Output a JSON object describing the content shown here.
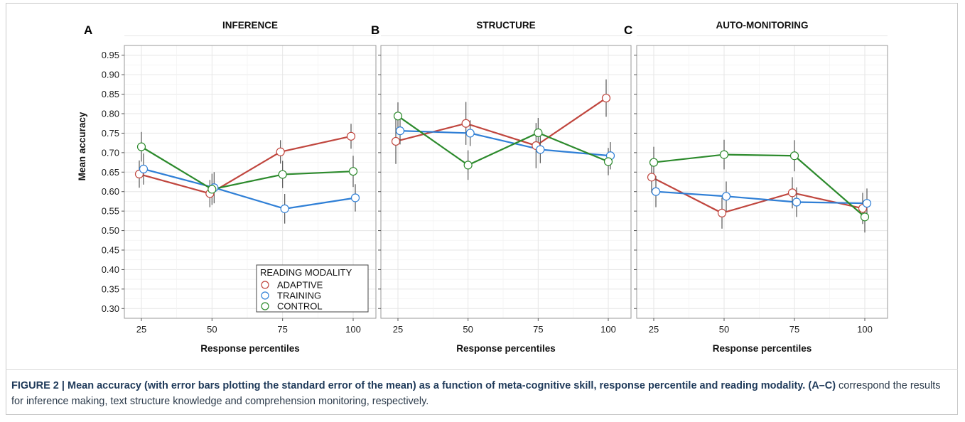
{
  "chart_data": [
    {
      "type": "line",
      "panel_letter": "A",
      "title": "INFERENCE",
      "xlabel": "Response percentiles",
      "ylabel": "Mean accuracy",
      "x_ticks": [
        "25",
        "50",
        "75",
        "100"
      ],
      "y_ticks": [
        "0.30",
        "0.35",
        "0.40",
        "0.45",
        "0.50",
        "0.55",
        "0.60",
        "0.65",
        "0.70",
        "0.75",
        "0.80",
        "0.85",
        "0.90",
        "0.95"
      ],
      "ylim": [
        0.275,
        0.975
      ],
      "grid": true,
      "series": [
        {
          "name": "ADAPTIVE",
          "x": [
            25,
            50,
            75,
            100
          ],
          "values": [
            0.645,
            0.595,
            0.702,
            0.742
          ],
          "se": [
            0.035,
            0.035,
            0.03,
            0.032
          ]
        },
        {
          "name": "TRAINING",
          "x": [
            25,
            50,
            75,
            100
          ],
          "values": [
            0.658,
            0.61,
            0.556,
            0.584
          ],
          "se": [
            0.04,
            0.04,
            0.038,
            0.035
          ]
        },
        {
          "name": "CONTROL",
          "x": [
            25,
            50,
            75,
            100
          ],
          "values": [
            0.715,
            0.606,
            0.644,
            0.652
          ],
          "se": [
            0.038,
            0.04,
            0.035,
            0.04
          ]
        }
      ],
      "legend": {
        "title": "READING MODALITY",
        "placement": "bottom-right",
        "entries": [
          "ADAPTIVE",
          "TRAINING",
          "CONTROL"
        ]
      }
    },
    {
      "type": "line",
      "panel_letter": "B",
      "title": "STRUCTURE",
      "xlabel": "Response percentiles",
      "ylabel": "",
      "x_ticks": [
        "25",
        "50",
        "75",
        "100"
      ],
      "ylim": [
        0.275,
        0.975
      ],
      "grid": true,
      "series": [
        {
          "name": "ADAPTIVE",
          "x": [
            25,
            50,
            75,
            100
          ],
          "values": [
            0.729,
            0.775,
            0.718,
            0.84
          ],
          "se": [
            0.058,
            0.055,
            0.058,
            0.048
          ]
        },
        {
          "name": "TRAINING",
          "x": [
            25,
            50,
            75,
            100
          ],
          "values": [
            0.756,
            0.75,
            0.708,
            0.692
          ],
          "se": [
            0.035,
            0.033,
            0.035,
            0.035
          ]
        },
        {
          "name": "CONTROL",
          "x": [
            25,
            50,
            75,
            100
          ],
          "values": [
            0.794,
            0.668,
            0.751,
            0.677
          ],
          "se": [
            0.035,
            0.038,
            0.038,
            0.035
          ]
        }
      ]
    },
    {
      "type": "line",
      "panel_letter": "C",
      "title": "AUTO-MONITORING",
      "xlabel": "Response percentiles",
      "ylabel": "",
      "x_ticks": [
        "25",
        "50",
        "75",
        "100"
      ],
      "ylim": [
        0.275,
        0.975
      ],
      "grid": true,
      "series": [
        {
          "name": "ADAPTIVE",
          "x": [
            25,
            50,
            75,
            100
          ],
          "values": [
            0.637,
            0.545,
            0.597,
            0.557
          ],
          "se": [
            0.04,
            0.04,
            0.04,
            0.04
          ]
        },
        {
          "name": "TRAINING",
          "x": [
            25,
            50,
            75,
            100
          ],
          "values": [
            0.6,
            0.588,
            0.573,
            0.57
          ],
          "se": [
            0.04,
            0.038,
            0.038,
            0.038
          ]
        },
        {
          "name": "CONTROL",
          "x": [
            25,
            50,
            75,
            100
          ],
          "values": [
            0.675,
            0.695,
            0.692,
            0.535
          ],
          "se": [
            0.04,
            0.038,
            0.04,
            0.04
          ]
        }
      ]
    }
  ],
  "colors": {
    "ADAPTIVE": "#c0463e",
    "TRAINING": "#2f7fd6",
    "CONTROL": "#2c8a2c",
    "error_bar": "#555555",
    "grid": "#e6e6e6",
    "panel_border": "#9a9a9a"
  },
  "caption": {
    "figure_label": "FIGURE 2 | ",
    "bold_text": "Mean accuracy (with error bars plotting the standard error of the mean) as a function of meta-cognitive skill, response percentile and reading modality. ",
    "bold_ref": "(A–C)",
    "regular_text": " correspond the results for inference making, text structure knowledge and comprehension monitoring, respectively."
  }
}
